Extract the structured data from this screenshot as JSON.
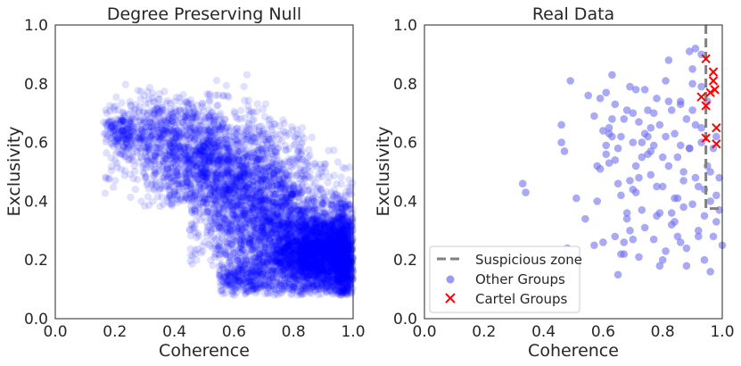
{
  "chart_data": [
    {
      "type": "scatter",
      "title": "Degree Preserving Null",
      "xlabel": "Coherence",
      "ylabel": "Exclusivity",
      "xlim": [
        0.0,
        1.0
      ],
      "ylim": [
        0.0,
        1.0
      ],
      "xticks": [
        "0.0",
        "0.2",
        "0.4",
        "0.6",
        "0.8",
        "1.0"
      ],
      "yticks": [
        "0.0",
        "0.2",
        "0.4",
        "0.6",
        "0.8",
        "1.0"
      ],
      "grid": false,
      "point_color": "#0000ff",
      "point_alpha": 0.12,
      "series": [
        {
          "values_description_points": "dense cloud",
          "clusters": [
            {
              "cx": 0.88,
              "cy": 0.22,
              "sx": 0.08,
              "sy": 0.07,
              "n": 2600
            },
            {
              "cx": 0.72,
              "cy": 0.32,
              "sx": 0.12,
              "sy": 0.12,
              "n": 1800
            },
            {
              "cx": 0.55,
              "cy": 0.5,
              "sx": 0.13,
              "sy": 0.1,
              "n": 1400
            },
            {
              "cx": 0.4,
              "cy": 0.62,
              "sx": 0.1,
              "sy": 0.08,
              "n": 700
            },
            {
              "cx": 0.22,
              "cy": 0.63,
              "sx": 0.03,
              "sy": 0.03,
              "n": 150
            },
            {
              "cx": 0.62,
              "cy": 0.14,
              "sx": 0.06,
              "sy": 0.03,
              "n": 300
            },
            {
              "cx": 0.97,
              "cy": 0.2,
              "sx": 0.02,
              "sy": 0.1,
              "n": 900
            }
          ]
        }
      ]
    },
    {
      "type": "scatter",
      "title": "Real Data",
      "xlabel": "Coherence",
      "ylabel": "Exclusivity",
      "xlim": [
        0.0,
        1.0
      ],
      "ylim": [
        0.0,
        1.0
      ],
      "xticks": [
        "0.0",
        "0.2",
        "0.4",
        "0.6",
        "0.8",
        "1.0"
      ],
      "yticks": [
        "0.0",
        "0.2",
        "0.4",
        "0.6",
        "0.8",
        "1.0"
      ],
      "grid": false,
      "legend_position": "lower-left",
      "suspicious_zone": {
        "x": 0.945,
        "y": 0.375,
        "color": "#808080"
      },
      "series": [
        {
          "name": "Other Groups",
          "color": "#6f6ff0",
          "x": [
            0.33,
            0.34,
            0.46,
            0.46,
            0.47,
            0.48,
            0.49,
            0.51,
            0.54,
            0.55,
            0.57,
            0.58,
            0.59,
            0.59,
            0.6,
            0.61,
            0.61,
            0.62,
            0.62,
            0.63,
            0.63,
            0.64,
            0.64,
            0.65,
            0.65,
            0.66,
            0.66,
            0.67,
            0.67,
            0.68,
            0.68,
            0.69,
            0.69,
            0.7,
            0.7,
            0.7,
            0.71,
            0.71,
            0.72,
            0.72,
            0.73,
            0.73,
            0.74,
            0.74,
            0.75,
            0.75,
            0.76,
            0.76,
            0.77,
            0.77,
            0.78,
            0.78,
            0.79,
            0.79,
            0.8,
            0.8,
            0.81,
            0.81,
            0.82,
            0.82,
            0.83,
            0.83,
            0.84,
            0.84,
            0.85,
            0.85,
            0.86,
            0.86,
            0.87,
            0.87,
            0.88,
            0.88,
            0.89,
            0.89,
            0.9,
            0.9,
            0.91,
            0.91,
            0.92,
            0.92,
            0.93,
            0.93,
            0.94,
            0.94,
            0.95,
            0.95,
            0.96,
            0.96,
            0.97,
            0.97,
            0.98,
            0.98,
            0.99,
            0.99,
            1.0,
            0.93,
            0.91,
            0.89,
            0.87,
            0.85,
            0.83,
            0.81,
            0.79,
            0.77,
            0.75,
            0.73,
            0.71,
            0.69,
            0.67,
            0.65,
            0.63,
            0.61,
            0.84,
            0.86,
            0.88,
            0.9,
            0.92,
            0.94,
            0.96,
            0.98,
            0.82,
            0.8,
            0.78,
            0.76,
            0.74,
            0.72,
            0.7,
            0.68,
            0.66,
            0.64,
            0.62,
            0.6,
            0.58,
            0.57,
            0.86,
            0.9,
            0.93
          ],
          "y": [
            0.46,
            0.43,
            0.66,
            0.6,
            0.57,
            0.24,
            0.81,
            0.41,
            0.34,
            0.76,
            0.25,
            0.52,
            0.51,
            0.75,
            0.64,
            0.77,
            0.59,
            0.65,
            0.53,
            0.83,
            0.62,
            0.28,
            0.73,
            0.58,
            0.46,
            0.62,
            0.42,
            0.68,
            0.26,
            0.71,
            0.36,
            0.79,
            0.47,
            0.6,
            0.44,
            0.27,
            0.78,
            0.52,
            0.67,
            0.21,
            0.6,
            0.37,
            0.78,
            0.31,
            0.56,
            0.71,
            0.49,
            0.65,
            0.27,
            0.59,
            0.75,
            0.45,
            0.66,
            0.36,
            0.2,
            0.55,
            0.62,
            0.81,
            0.52,
            0.88,
            0.36,
            0.71,
            0.63,
            0.41,
            0.55,
            0.28,
            0.59,
            0.73,
            0.47,
            0.38,
            0.68,
            0.24,
            0.58,
            0.91,
            0.39,
            0.71,
            0.48,
            0.92,
            0.45,
            0.28,
            0.65,
            0.6,
            0.35,
            0.44,
            0.74,
            0.52,
            0.4,
            0.16,
            0.58,
            0.28,
            0.42,
            0.33,
            0.48,
            0.37,
            0.25,
            0.9,
            0.66,
            0.58,
            0.5,
            0.41,
            0.32,
            0.23,
            0.18,
            0.7,
            0.62,
            0.55,
            0.43,
            0.3,
            0.22,
            0.15,
            0.68,
            0.56,
            0.33,
            0.26,
            0.18,
            0.8,
            0.3,
            0.2,
            0.5,
            0.62,
            0.74,
            0.45,
            0.35,
            0.57,
            0.63,
            0.48,
            0.7,
            0.34,
            0.22,
            0.54,
            0.63,
            0.26,
            0.4,
            0.69,
            0.74,
            0.85,
            0.79
          ]
        },
        {
          "name": "Cartel Groups",
          "color": "#ff0000",
          "x": [
            0.945,
            0.97,
            0.97,
            0.975,
            0.93,
            0.96,
            0.945,
            0.98,
            0.945,
            0.98
          ],
          "y": [
            0.885,
            0.84,
            0.81,
            0.78,
            0.755,
            0.77,
            0.725,
            0.65,
            0.615,
            0.595
          ]
        }
      ],
      "legend": [
        "Suspicious zone",
        "Other Groups",
        "Cartel Groups"
      ]
    }
  ]
}
